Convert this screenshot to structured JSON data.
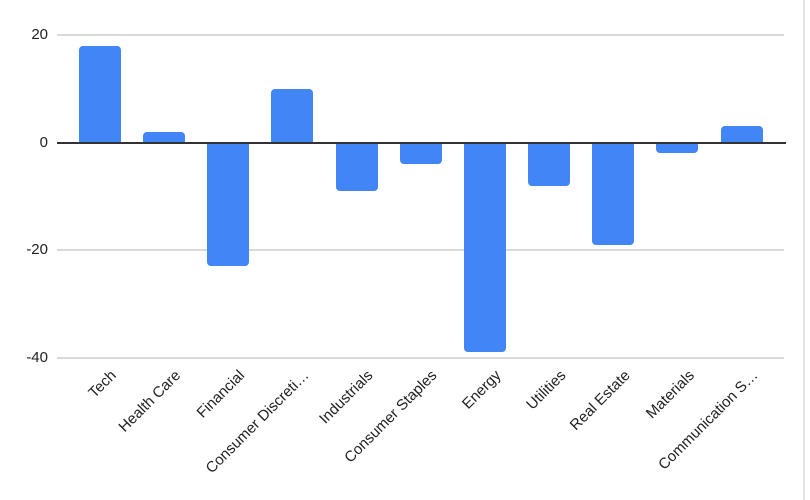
{
  "chart_data": {
    "type": "bar",
    "categories": [
      "Tech",
      "Health Care",
      "Financial",
      "Consumer Discreti…",
      "Industrials",
      "Consumer Staples",
      "Energy",
      "Utilities",
      "Real Estate",
      "Materials",
      "Communication S…"
    ],
    "values": [
      18,
      2,
      -23,
      10,
      -9,
      -4,
      -39,
      -8,
      -19,
      -2,
      3
    ],
    "y_ticks": [
      20,
      0,
      -20,
      -40
    ],
    "y_tick_labels": [
      "20",
      "0",
      "-20",
      "-40"
    ],
    "ylim": [
      -40,
      20
    ],
    "title": "",
    "xlabel": "",
    "ylabel": "",
    "legend": "none",
    "grid": true,
    "colors": {
      "bar": "#4285F4",
      "zero_axis": "#333333",
      "gridline": "#d9d9d9",
      "text": "#212121",
      "chart_border": "#e4e4e4"
    }
  }
}
